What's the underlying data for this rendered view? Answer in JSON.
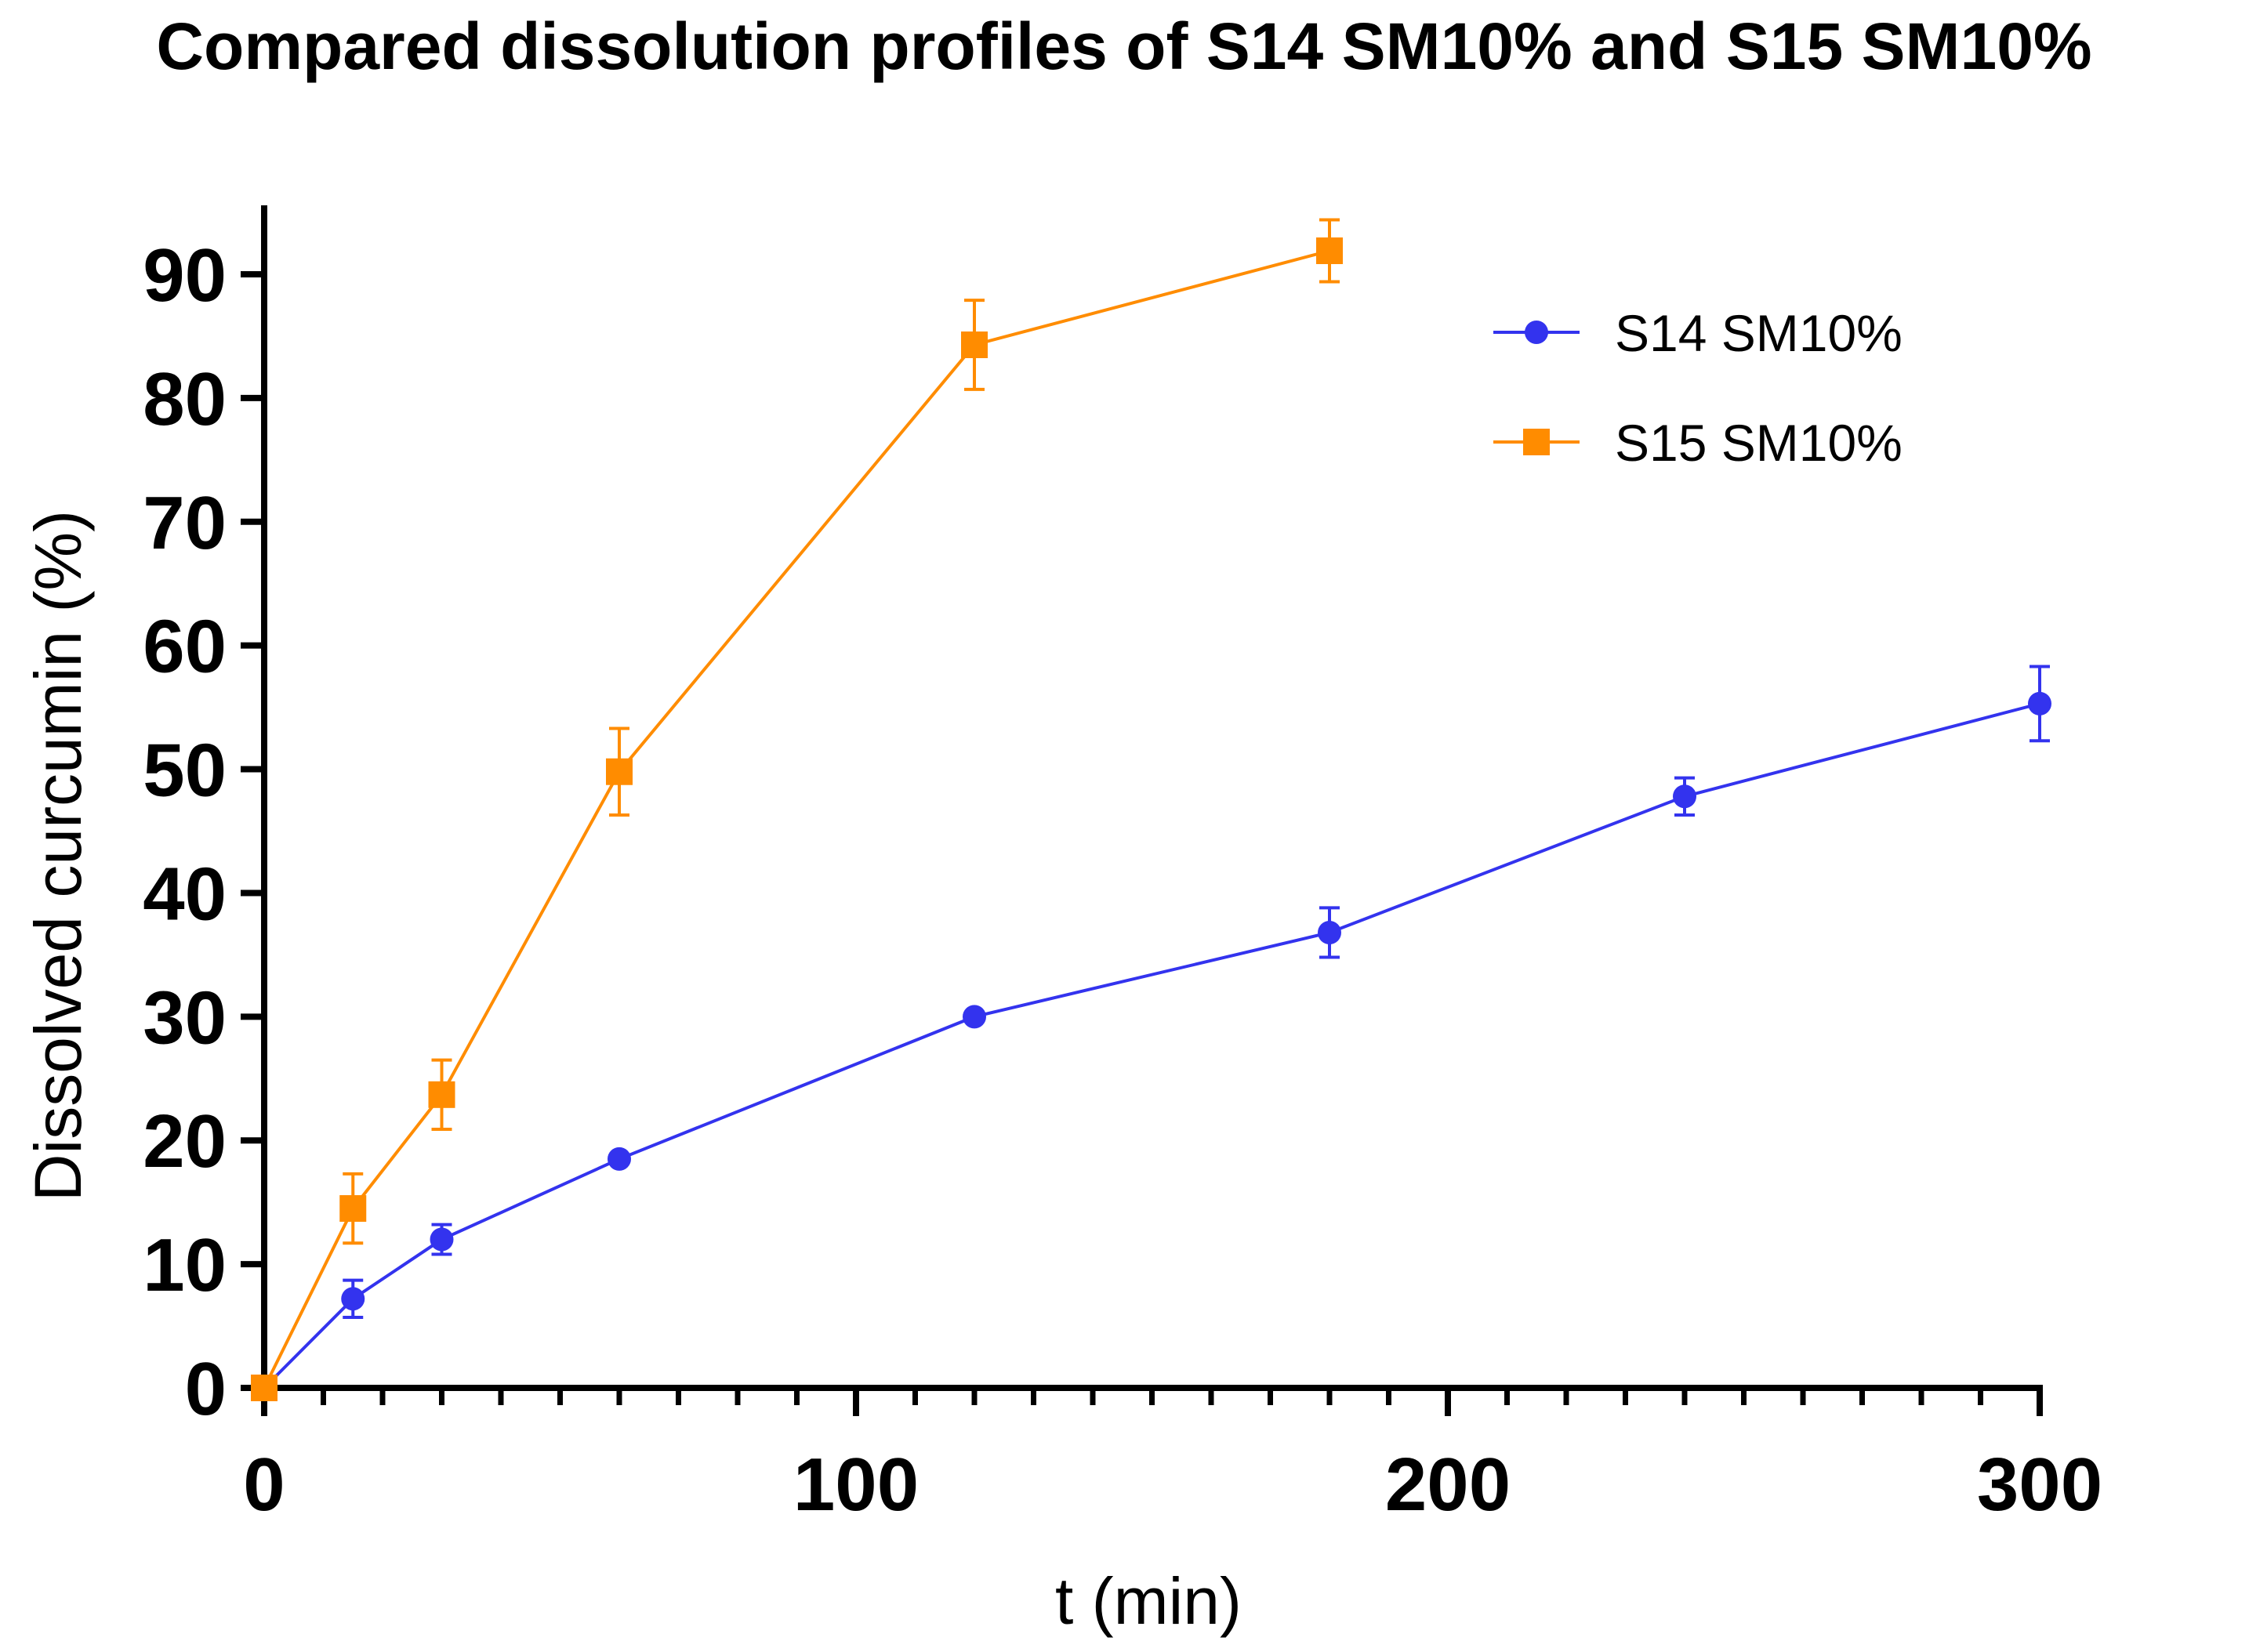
{
  "chart_data": {
    "type": "line",
    "title": "Compared dissolution profiles of S14 SM10% and S15 SM10%",
    "xlabel": "t (min)",
    "ylabel": "Dissolved curcumin (%)",
    "xlim": [
      0,
      300
    ],
    "ylim": [
      0,
      95
    ],
    "x_major_ticks": [
      0,
      100,
      200,
      300
    ],
    "x_minor_step": 10,
    "y_ticks": [
      0,
      10,
      20,
      30,
      40,
      50,
      60,
      70,
      80,
      90
    ],
    "grid": false,
    "legend_position": "top-right",
    "series": [
      {
        "name": "S14 SM10%",
        "color": "#3333ee",
        "marker": "circle",
        "x": [
          0,
          15,
          30,
          60,
          120,
          180,
          240,
          300
        ],
        "y": [
          0,
          7.2,
          12.0,
          18.5,
          30.0,
          36.8,
          47.8,
          55.3
        ],
        "err": [
          0,
          1.5,
          1.2,
          0,
          0,
          2.0,
          1.5,
          3.0
        ]
      },
      {
        "name": "S15 SM10%",
        "color": "#ff8c00",
        "marker": "square",
        "x": [
          0,
          15,
          30,
          60,
          120,
          180
        ],
        "y": [
          0,
          14.5,
          23.7,
          49.8,
          84.3,
          91.9
        ],
        "err": [
          0,
          2.8,
          2.8,
          3.5,
          3.6,
          2.5
        ]
      }
    ]
  }
}
